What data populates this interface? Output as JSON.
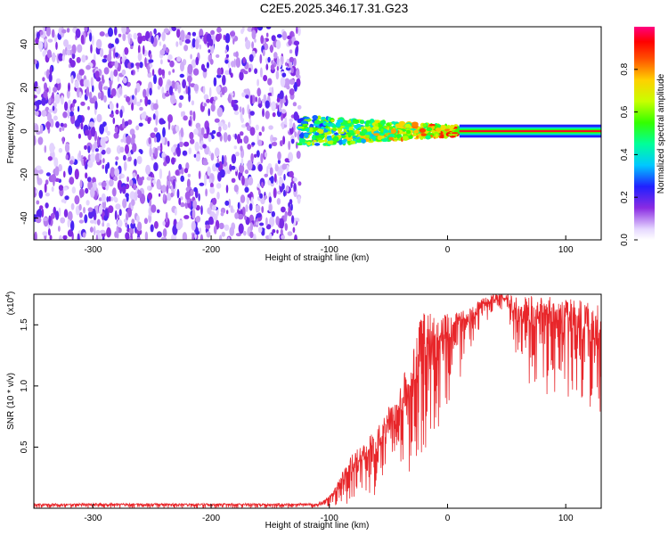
{
  "page": {
    "title": "C2E5.2025.346.17.31.G23"
  },
  "chart_data": [
    {
      "type": "heatmap",
      "title": "C2E5.2025.346.17.31.G23",
      "xlabel": "Height of straight line (km)",
      "ylabel": "Frequency (Hz)",
      "xlim": [
        -350,
        130
      ],
      "ylim": [
        -50,
        48
      ],
      "xticks": [
        -300,
        -200,
        -100,
        0,
        100
      ],
      "xtick_labels": [
        "-300",
        "-200",
        "-100",
        "0",
        "100"
      ],
      "yticks": [
        -40,
        -20,
        0,
        20,
        40
      ],
      "ytick_labels": [
        "-40",
        "-20",
        "0",
        "20",
        "40"
      ],
      "colorbar": {
        "label": "Normalized spectral amplitude",
        "range": [
          0,
          1
        ],
        "ticks": [
          0.0,
          0.2,
          0.4,
          0.6,
          0.8
        ],
        "tick_labels": [
          "0.0",
          "0.2",
          "0.4",
          "0.6",
          "0.8"
        ],
        "colormap": "rainbow (white-purple-blue-cyan-green-yellow-red-magenta)"
      },
      "regions": [
        {
          "x_range": [
            -350,
            -125
          ],
          "freq_range": [
            -50,
            48
          ],
          "description": "broadband noise",
          "amplitude_range": [
            0.05,
            0.22
          ]
        },
        {
          "x_range": [
            -125,
            10
          ],
          "freq_center": 0,
          "freq_halfwidth_range": [
            2,
            7
          ],
          "amplitude_range": [
            0.2,
            0.95
          ]
        },
        {
          "x_range": [
            10,
            130
          ],
          "freq_center": 0,
          "amplitude": 0.95
        }
      ],
      "grid": false
    },
    {
      "type": "line",
      "xlabel": "Height of straight line (km)",
      "ylabel": "SNR (10 * v/v)",
      "y_scale_label": "(x10",
      "y_scale_exponent": "4",
      "y_multiplier": 10000,
      "xlim": [
        -350,
        130
      ],
      "ylim": [
        0,
        1.75
      ],
      "xticks": [
        -300,
        -200,
        -100,
        0,
        100
      ],
      "xtick_labels": [
        "-300",
        "-200",
        "-100",
        "0",
        "100"
      ],
      "yticks": [
        0.5,
        1.0,
        1.5
      ],
      "ytick_labels": [
        "0.5",
        "1.0",
        "1.5"
      ],
      "series": [
        {
          "color": "#e8262a",
          "envelope": {
            "x": [
              -350,
              -110,
              -100,
              -90,
              -80,
              -70,
              -60,
              -50,
              -40,
              -30,
              -20,
              -10,
              0,
              10,
              20,
              30,
              40,
              50,
              60,
              80,
              100,
              130
            ],
            "min": [
              0.0,
              0.0,
              0.0,
              0.02,
              0.05,
              0.08,
              0.08,
              0.15,
              0.2,
              0.25,
              0.4,
              0.6,
              0.85,
              1.05,
              1.3,
              1.5,
              1.6,
              1.62,
              1.1,
              0.9,
              0.8,
              0.7
            ],
            "max": [
              0.04,
              0.04,
              0.1,
              0.28,
              0.45,
              0.55,
              0.65,
              0.85,
              1.0,
              1.3,
              1.65,
              1.55,
              1.6,
              1.6,
              1.65,
              1.72,
              1.75,
              1.75,
              1.74,
              1.74,
              1.72,
              1.68
            ]
          }
        }
      ],
      "grid": false
    }
  ]
}
